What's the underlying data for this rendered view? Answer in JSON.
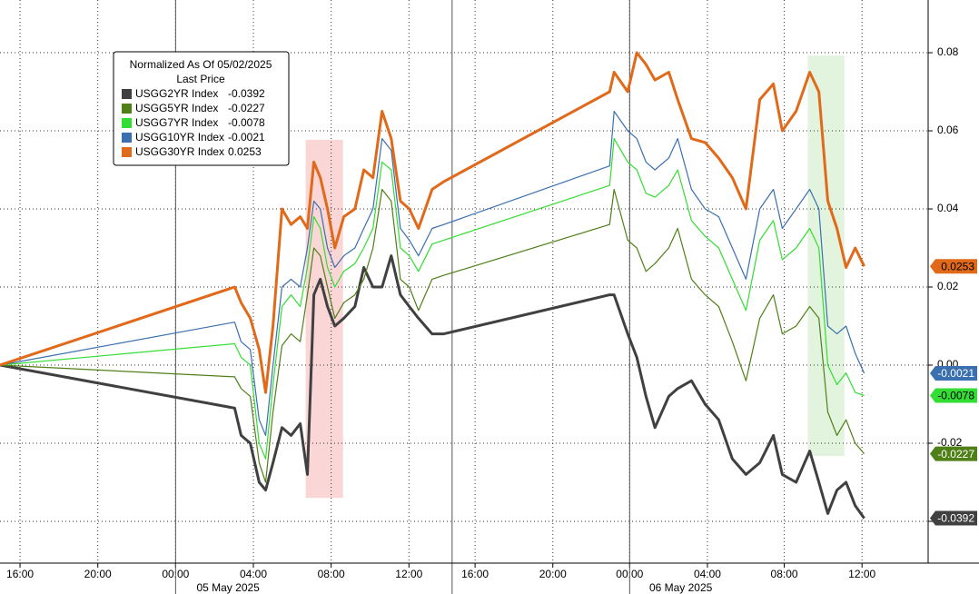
{
  "chart_data": {
    "type": "line",
    "legend_title": "Normalized As Of 05/02/2025",
    "legend_subtitle": "Last Price",
    "x": [
      -1.03,
      11.04,
      11.37,
      11.84,
      12.3,
      12.63,
      13.01,
      13.47,
      13.94,
      14.41,
      14.78,
      15.11,
      15.44,
      15.81,
      16.19,
      16.65,
      17.22,
      17.68,
      18.15,
      18.62,
      19.09,
      19.56,
      20.02,
      20.49,
      21.19,
      21.8,
      30.32,
      30.55,
      31.25,
      31.72,
      32.19,
      32.65,
      33.36,
      33.82,
      34.53,
      35.23,
      35.93,
      36.63,
      37.33,
      38.04,
      38.74,
      39.2,
      39.91,
      40.61,
      41.08,
      41.54,
      42.01,
      42.48,
      42.95,
      43.41
    ],
    "series": [
      {
        "name": "USGG2YR Index",
        "color": "#404040",
        "label_text_color": "#ffffff",
        "last_price": -0.0392,
        "values": [
          0,
          -0.011,
          -0.018,
          -0.02,
          -0.03,
          -0.032,
          -0.025,
          -0.016,
          -0.018,
          -0.015,
          -0.028,
          0.018,
          0.022,
          0.015,
          0.01,
          0.012,
          0.015,
          0.025,
          0.02,
          0.02,
          0.028,
          0.018,
          0.015,
          0.012,
          0.008,
          0.008,
          0.018,
          0.018,
          0.008,
          0.002,
          -0.008,
          -0.016,
          -0.008,
          -0.006,
          -0.004,
          -0.01,
          -0.014,
          -0.024,
          -0.028,
          -0.025,
          -0.018,
          -0.028,
          -0.03,
          -0.022,
          -0.03,
          -0.038,
          -0.032,
          -0.03,
          -0.036,
          -0.0392
        ]
      },
      {
        "name": "USGG5YR Index",
        "color": "#4f7f17",
        "label_text_color": "#ffffff",
        "last_price": -0.0227,
        "values": [
          0,
          -0.003,
          -0.006,
          -0.008,
          -0.025,
          -0.03,
          -0.012,
          0.005,
          0.008,
          0.006,
          0.018,
          0.03,
          0.028,
          0.02,
          0.012,
          0.016,
          0.018,
          0.022,
          0.03,
          0.045,
          0.042,
          0.022,
          0.02,
          0.014,
          0.022,
          0.023,
          0.036,
          0.045,
          0.032,
          0.03,
          0.024,
          0.026,
          0.03,
          0.035,
          0.022,
          0.018,
          0.015,
          0.006,
          -0.004,
          0.012,
          0.018,
          0.008,
          0.01,
          0.015,
          0.012,
          -0.012,
          -0.018,
          -0.014,
          -0.02,
          -0.0227
        ]
      },
      {
        "name": "USGG7YR Index",
        "color": "#33dd33",
        "label_text_color": "#000000",
        "last_price": -0.0078,
        "values": [
          0,
          0.0055,
          0.002,
          0,
          -0.02,
          -0.024,
          -0.005,
          0.015,
          0.018,
          0.015,
          0.025,
          0.038,
          0.035,
          0.025,
          0.02,
          0.024,
          0.026,
          0.03,
          0.035,
          0.052,
          0.05,
          0.03,
          0.028,
          0.024,
          0.031,
          0.032,
          0.046,
          0.058,
          0.052,
          0.05,
          0.044,
          0.043,
          0.046,
          0.05,
          0.037,
          0.033,
          0.03,
          0.022,
          0.014,
          0.032,
          0.037,
          0.027,
          0.03,
          0.035,
          0.03,
          0,
          -0.005,
          -0.002,
          -0.007,
          -0.0078
        ]
      },
      {
        "name": "USGG10YR Index",
        "color": "#3a6fb0",
        "label_text_color": "#ffffff",
        "last_price": -0.0021,
        "values": [
          0,
          0.011,
          0.006,
          0.004,
          -0.014,
          -0.018,
          0,
          0.02,
          0.022,
          0.02,
          0.03,
          0.042,
          0.04,
          0.03,
          0.025,
          0.028,
          0.03,
          0.035,
          0.04,
          0.058,
          0.055,
          0.035,
          0.032,
          0.028,
          0.035,
          0.036,
          0.051,
          0.065,
          0.06,
          0.058,
          0.052,
          0.05,
          0.053,
          0.058,
          0.045,
          0.04,
          0.038,
          0.03,
          0.022,
          0.04,
          0.045,
          0.035,
          0.04,
          0.045,
          0.04,
          0.01,
          0.008,
          0.01,
          0.003,
          -0.0021
        ]
      },
      {
        "name": "USGG30YR Index",
        "color": "#e0691a",
        "label_text_color": "#000000",
        "last_price": 0.0253,
        "values": [
          0,
          0.02,
          0.016,
          0.012,
          0.004,
          -0.007,
          0.01,
          0.04,
          0.036,
          0.038,
          0.035,
          0.052,
          0.048,
          0.04,
          0.03,
          0.038,
          0.04,
          0.05,
          0.048,
          0.065,
          0.058,
          0.042,
          0.04,
          0.035,
          0.045,
          0.047,
          0.07,
          0.075,
          0.07,
          0.08,
          0.077,
          0.073,
          0.075,
          0.068,
          0.058,
          0.057,
          0.053,
          0.048,
          0.04,
          0.068,
          0.072,
          0.06,
          0.065,
          0.075,
          0.07,
          0.042,
          0.035,
          0.025,
          0.03,
          0.0253
        ]
      }
    ],
    "xlim": [
      -1.03,
      46.7
    ],
    "ylim": [
      -0.0507,
      0.0935
    ],
    "xticks": [
      {
        "value": 0,
        "label": "16:00"
      },
      {
        "value": 4,
        "label": "20:00"
      },
      {
        "value": 8,
        "label": "00:00"
      },
      {
        "value": 12,
        "label": "04:00"
      },
      {
        "value": 16,
        "label": "08:00"
      },
      {
        "value": 20,
        "label": "12:00"
      },
      {
        "value": 23.4,
        "label": "16:00"
      },
      {
        "value": 27.4,
        "label": "20:00"
      },
      {
        "value": 31.35,
        "label": "00:00"
      },
      {
        "value": 35.35,
        "label": "04:00"
      },
      {
        "value": 39.3,
        "label": "08:00"
      },
      {
        "value": 43.3,
        "label": "12:00"
      }
    ],
    "date_labels": [
      {
        "value": 10.7,
        "label": "05 May 2025"
      },
      {
        "value": 33.98,
        "label": "06 May 2025"
      }
    ],
    "separators": [
      8,
      22.22,
      31.35
    ],
    "yticks": [
      0.08,
      0.06,
      0.04,
      0.02,
      {
        "value": 0,
        "label": "0.00"
      },
      -0.02,
      -0.04
    ],
    "highlights": [
      {
        "x": [
          14.69,
          16.61
        ],
        "y": [
          -0.034,
          0.0577
        ],
        "color": "rgba(240,120,120,0.3)"
      },
      {
        "x": [
          40.51,
          42.39
        ],
        "y": [
          -0.0233,
          0.0793
        ],
        "color": "rgba(140,210,120,0.25)"
      }
    ],
    "grid": true
  }
}
